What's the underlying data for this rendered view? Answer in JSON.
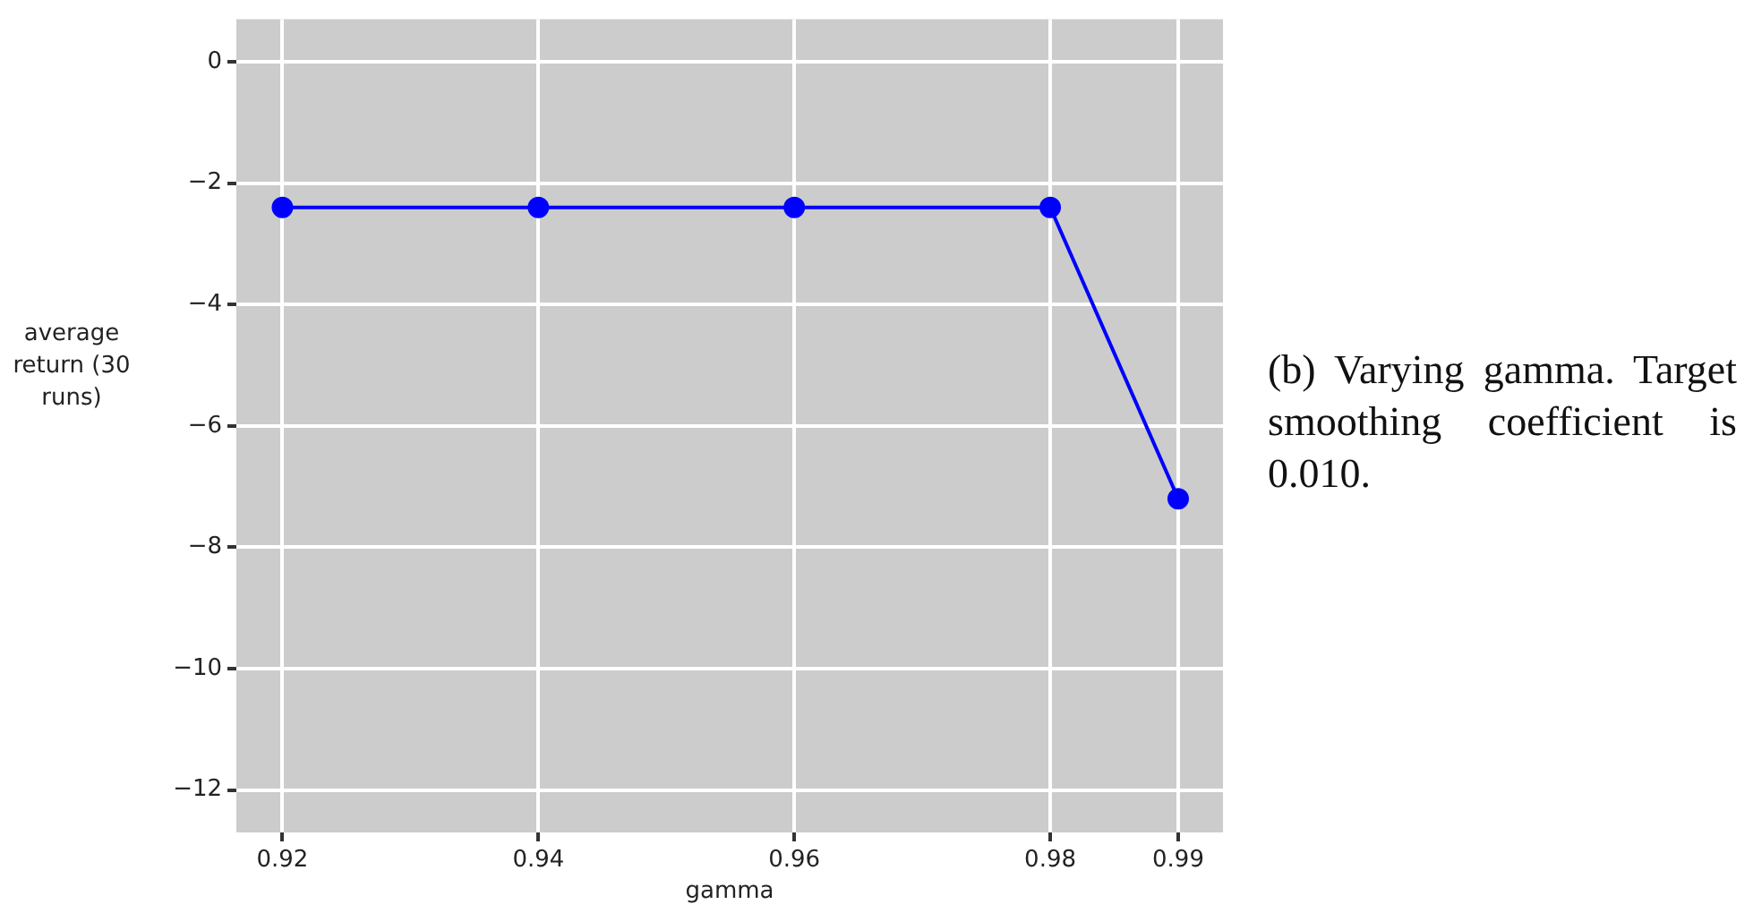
{
  "chart_data": {
    "type": "line",
    "xlabel": "gamma",
    "ylabel": "average return (30 runs)",
    "annotations": [
      "(b) Varying gamma. Target smoothing coefficient is 0.010."
    ],
    "x": [
      0.92,
      0.94,
      0.96,
      0.98,
      0.99
    ],
    "series": [
      {
        "color": "#0000ff",
        "values": [
          -2.4,
          -2.4,
          -2.4,
          -2.4,
          -7.2
        ]
      }
    ],
    "xlim": [
      0.9164,
      0.9935
    ],
    "xticks": [
      0.92,
      0.94,
      0.96,
      0.98,
      0.99
    ],
    "ylim": [
      -12.7,
      0.7
    ],
    "yticks": [
      0,
      -2,
      -4,
      -6,
      -8,
      -10,
      -12
    ],
    "grid": true,
    "legend": false,
    "marker": "circle",
    "line_style": "solid"
  }
}
